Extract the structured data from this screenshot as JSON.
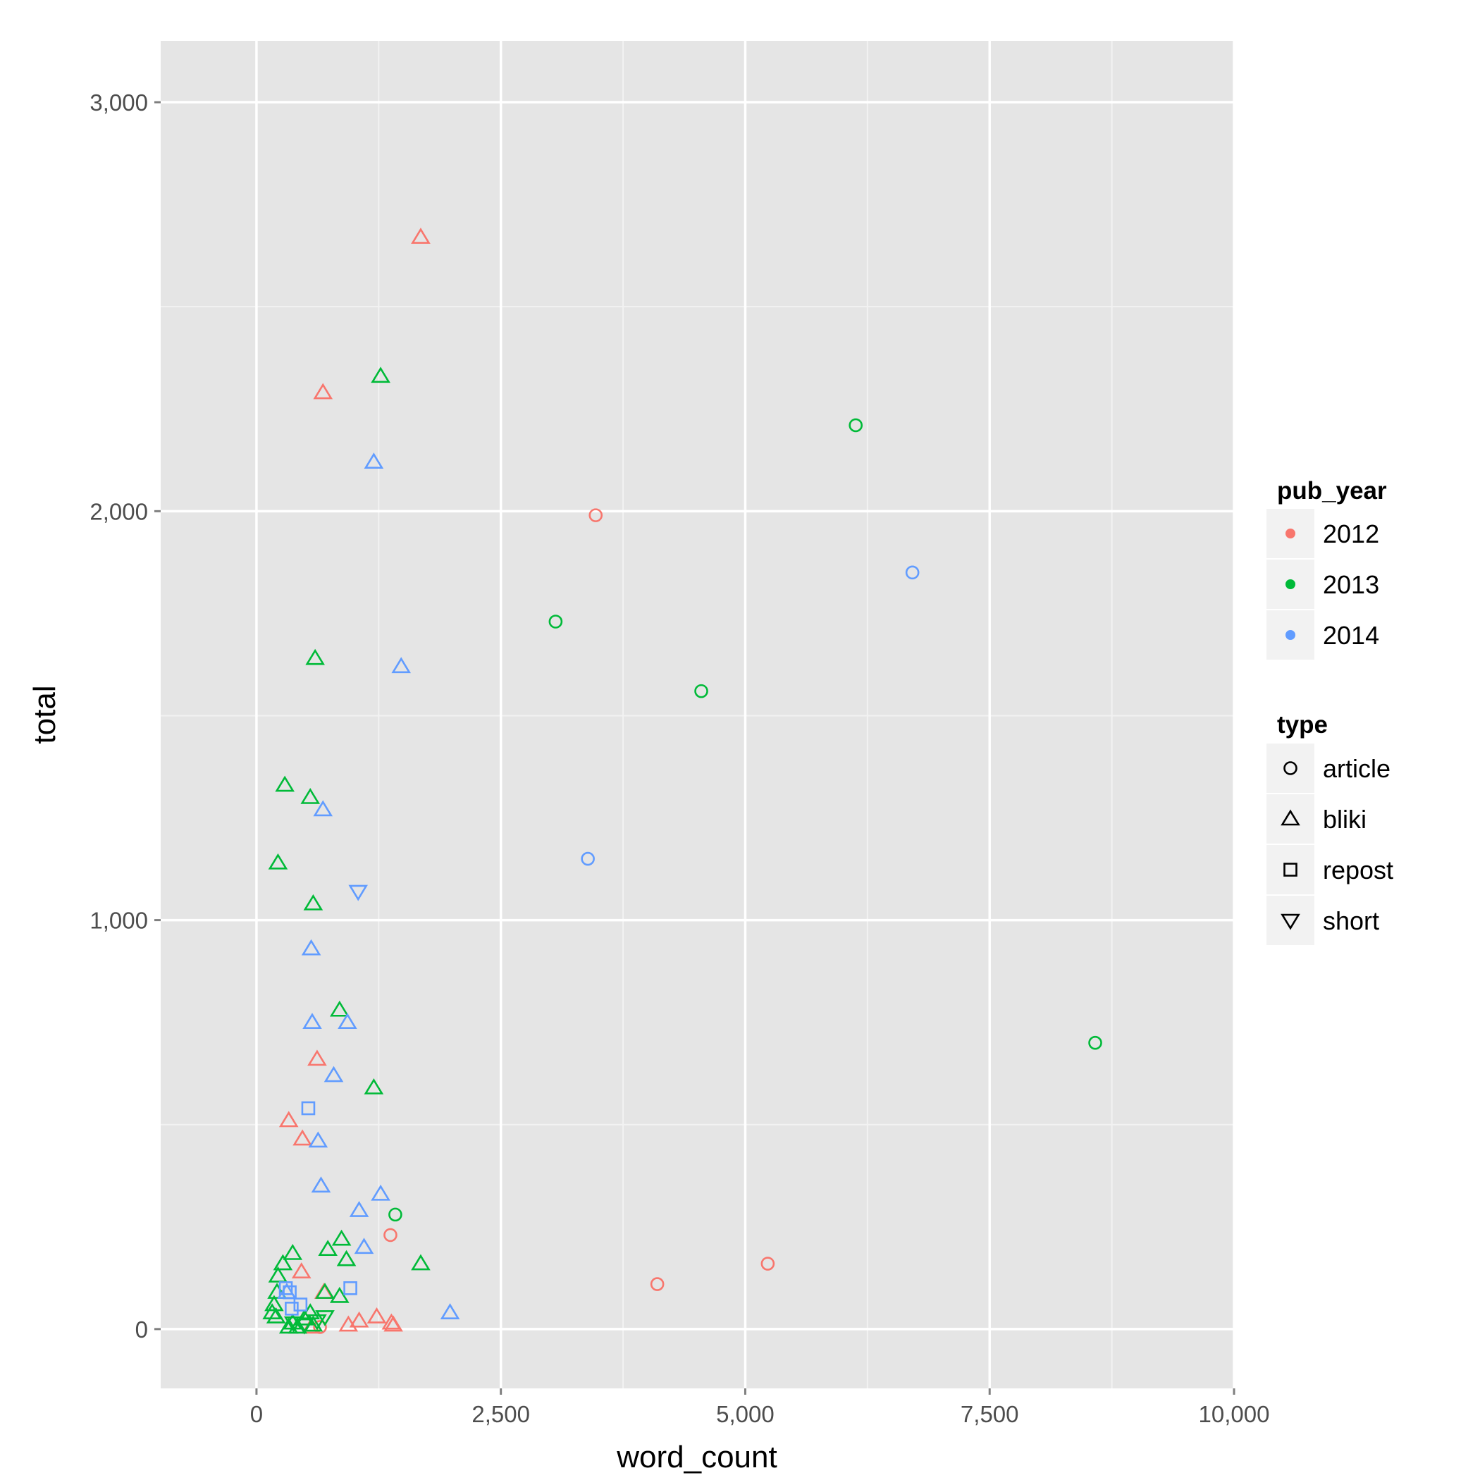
{
  "chart_data": {
    "type": "scatter",
    "xlabel": "word_count",
    "ylabel": "total",
    "xlim": [
      -980,
      10000
    ],
    "ylim": [
      -145,
      3150
    ],
    "x_ticks": [
      {
        "value": 0,
        "label": "0"
      },
      {
        "value": 2500,
        "label": "2,500"
      },
      {
        "value": 5000,
        "label": "5,000"
      },
      {
        "value": 7500,
        "label": "7,500"
      },
      {
        "value": 10000,
        "label": "10,000"
      }
    ],
    "y_ticks": [
      {
        "value": 0,
        "label": "0"
      },
      {
        "value": 1000,
        "label": "1,000"
      },
      {
        "value": 2000,
        "label": "2,000"
      },
      {
        "value": 3000,
        "label": "3,000"
      }
    ],
    "grid": true,
    "legend": {
      "placement": "right",
      "color_title": "pub_year",
      "color_entries": [
        {
          "label": "2012",
          "color": "#F8766D"
        },
        {
          "label": "2013",
          "color": "#00BA38"
        },
        {
          "label": "2014",
          "color": "#619CFF"
        }
      ],
      "shape_title": "type",
      "shape_entries": [
        {
          "label": "article",
          "shape": "circle"
        },
        {
          "label": "bliki",
          "shape": "triangle"
        },
        {
          "label": "repost",
          "shape": "square"
        },
        {
          "label": "short",
          "shape": "triangle-down"
        }
      ]
    },
    "series": [
      {
        "year": "2012",
        "type": "bliki",
        "points": [
          [
            1680,
            2670
          ],
          [
            680,
            2290
          ],
          [
            620,
            660
          ],
          [
            330,
            510
          ],
          [
            470,
            465
          ],
          [
            460,
            140
          ],
          [
            690,
            90
          ],
          [
            1050,
            20
          ],
          [
            1230,
            30
          ],
          [
            1380,
            15
          ],
          [
            1400,
            10
          ],
          [
            940,
            10
          ],
          [
            560,
            5
          ]
        ]
      },
      {
        "year": "2012",
        "type": "article",
        "points": [
          [
            3470,
            1990
          ],
          [
            1370,
            230
          ],
          [
            5230,
            160
          ],
          [
            4100,
            110
          ],
          [
            650,
            5
          ]
        ]
      },
      {
        "year": "2013",
        "type": "bliki",
        "points": [
          [
            1270,
            2330
          ],
          [
            600,
            1640
          ],
          [
            290,
            1330
          ],
          [
            550,
            1300
          ],
          [
            220,
            1140
          ],
          [
            580,
            1040
          ],
          [
            850,
            780
          ],
          [
            1200,
            590
          ],
          [
            370,
            185
          ],
          [
            730,
            195
          ],
          [
            870,
            220
          ],
          [
            1680,
            160
          ],
          [
            920,
            170
          ],
          [
            270,
            160
          ],
          [
            220,
            130
          ],
          [
            850,
            80
          ],
          [
            700,
            90
          ],
          [
            210,
            90
          ],
          [
            180,
            60
          ],
          [
            160,
            40
          ],
          [
            200,
            30
          ],
          [
            370,
            15
          ],
          [
            490,
            25
          ],
          [
            550,
            40
          ],
          [
            580,
            10
          ],
          [
            330,
            5
          ],
          [
            420,
            5
          ]
        ]
      },
      {
        "year": "2013",
        "type": "article",
        "points": [
          [
            6130,
            2210
          ],
          [
            3060,
            1730
          ],
          [
            4550,
            1560
          ],
          [
            8580,
            700
          ],
          [
            1420,
            280
          ]
        ]
      },
      {
        "year": "2013",
        "type": "short",
        "points": [
          [
            620,
            20
          ],
          [
            700,
            30
          ],
          [
            490,
            10
          ],
          [
            380,
            15
          ]
        ]
      },
      {
        "year": "2014",
        "type": "bliki",
        "points": [
          [
            1200,
            2120
          ],
          [
            1480,
            1620
          ],
          [
            680,
            1270
          ],
          [
            560,
            930
          ],
          [
            570,
            750
          ],
          [
            930,
            750
          ],
          [
            790,
            620
          ],
          [
            630,
            460
          ],
          [
            660,
            350
          ],
          [
            1270,
            330
          ],
          [
            1050,
            290
          ],
          [
            1100,
            200
          ],
          [
            1980,
            40
          ],
          [
            310,
            90
          ]
        ]
      },
      {
        "year": "2014",
        "type": "article",
        "points": [
          [
            6710,
            1850
          ],
          [
            3390,
            1150
          ]
        ]
      },
      {
        "year": "2014",
        "type": "short",
        "points": [
          [
            1040,
            1070
          ]
        ]
      },
      {
        "year": "2014",
        "type": "repost",
        "points": [
          [
            530,
            540
          ],
          [
            960,
            100
          ],
          [
            340,
            90
          ],
          [
            360,
            50
          ],
          [
            450,
            60
          ],
          [
            300,
            100
          ]
        ]
      }
    ]
  }
}
